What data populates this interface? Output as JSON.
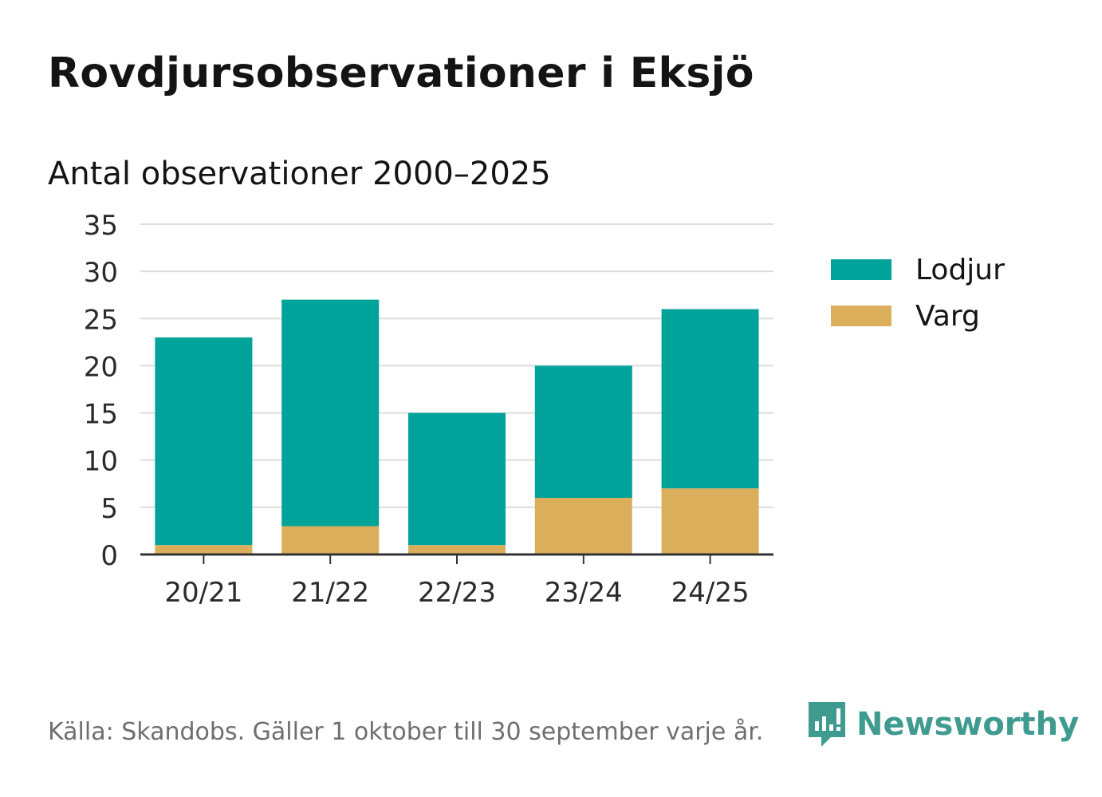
{
  "title": "Rovdjursobservationer i Eksjö",
  "chart_data": {
    "type": "bar",
    "stacked": true,
    "title": "Antal observationer 2000–2025",
    "categories": [
      "20/21",
      "21/22",
      "22/23",
      "23/24",
      "24/25"
    ],
    "series": [
      {
        "name": "Varg",
        "color": "#dbae5c",
        "values": [
          1,
          3,
          1,
          6,
          7
        ]
      },
      {
        "name": "Lodjur",
        "color": "#00a39a",
        "values": [
          22,
          24,
          14,
          14,
          19
        ]
      }
    ],
    "ylim": [
      0,
      35
    ],
    "yticks": [
      0,
      5,
      10,
      15,
      20,
      25,
      30,
      35
    ],
    "grid": true,
    "legend": [
      {
        "name": "Lodjur",
        "color": "#00a39a"
      },
      {
        "name": "Varg",
        "color": "#dbae5c"
      }
    ],
    "legend_position": "right"
  },
  "footer": {
    "source": "Källa: Skandobs. Gäller 1 oktober till 30 september varje år.",
    "brand": "Newsworthy",
    "brand_icon": "newsworthy-logo-icon",
    "brand_color": "#3f9b8f"
  }
}
